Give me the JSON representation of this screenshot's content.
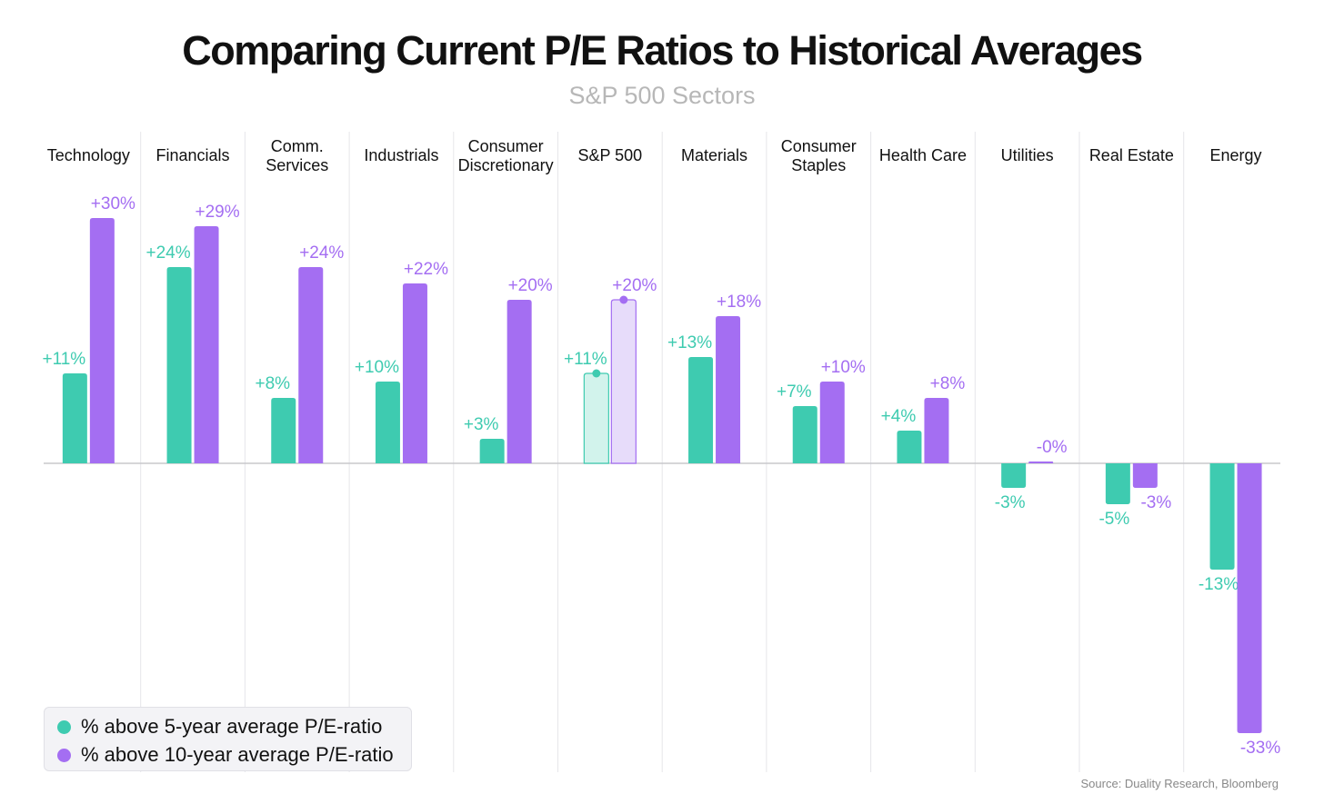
{
  "title": "Comparing Current P/E Ratios to Historical Averages",
  "subtitle": "S&P 500 Sectors",
  "source": "Source: Duality Research, Bloomberg",
  "colors": {
    "five_year": "#3ecbb0",
    "ten_year": "#a46ef2",
    "five_year_light": "#d2f3ec",
    "ten_year_light": "#e7dcfa",
    "axis": "#c8c8cc",
    "divider": "#e6e6ea"
  },
  "legend": [
    {
      "label": "% above 5-year average P/E-ratio",
      "color": "#3ecbb0"
    },
    {
      "label": "% above 10-year average P/E-ratio",
      "color": "#a46ef2"
    }
  ],
  "chart_data": {
    "type": "bar",
    "title": "Comparing Current P/E Ratios to Historical Averages",
    "subtitle": "S&P 500 Sectors",
    "categories": [
      [
        "Technology"
      ],
      [
        "Financials"
      ],
      [
        "Comm.",
        "Services"
      ],
      [
        "Industrials"
      ],
      [
        "Consumer",
        "Discretionary"
      ],
      [
        "S&P 500"
      ],
      [
        "Materials"
      ],
      [
        "Consumer",
        "Staples"
      ],
      [
        "Health Care"
      ],
      [
        "Utilities"
      ],
      [
        "Real Estate"
      ],
      [
        "Energy"
      ]
    ],
    "highlighted_category": "S&P 500",
    "series": [
      {
        "name": "% above 5-year average P/E-ratio",
        "values": [
          11,
          24,
          8,
          10,
          3,
          11,
          13,
          7,
          4,
          -3,
          -5,
          -13
        ],
        "labels": [
          "+11%",
          "+24%",
          "+8%",
          "+10%",
          "+3%",
          "+11%",
          "+13%",
          "+7%",
          "+4%",
          "-3%",
          "-5%",
          "-13%"
        ]
      },
      {
        "name": "% above 10-year average P/E-ratio",
        "values": [
          30,
          29,
          24,
          22,
          20,
          20,
          18,
          10,
          8,
          0,
          -3,
          -33
        ],
        "labels": [
          "+30%",
          "+29%",
          "+24%",
          "+22%",
          "+20%",
          "+20%",
          "+18%",
          "+10%",
          "+8%",
          "-0%",
          "-3%",
          "-33%"
        ]
      }
    ],
    "ylim": [
      -33,
      30
    ],
    "grid": false,
    "legend_position": "bottom-left"
  }
}
